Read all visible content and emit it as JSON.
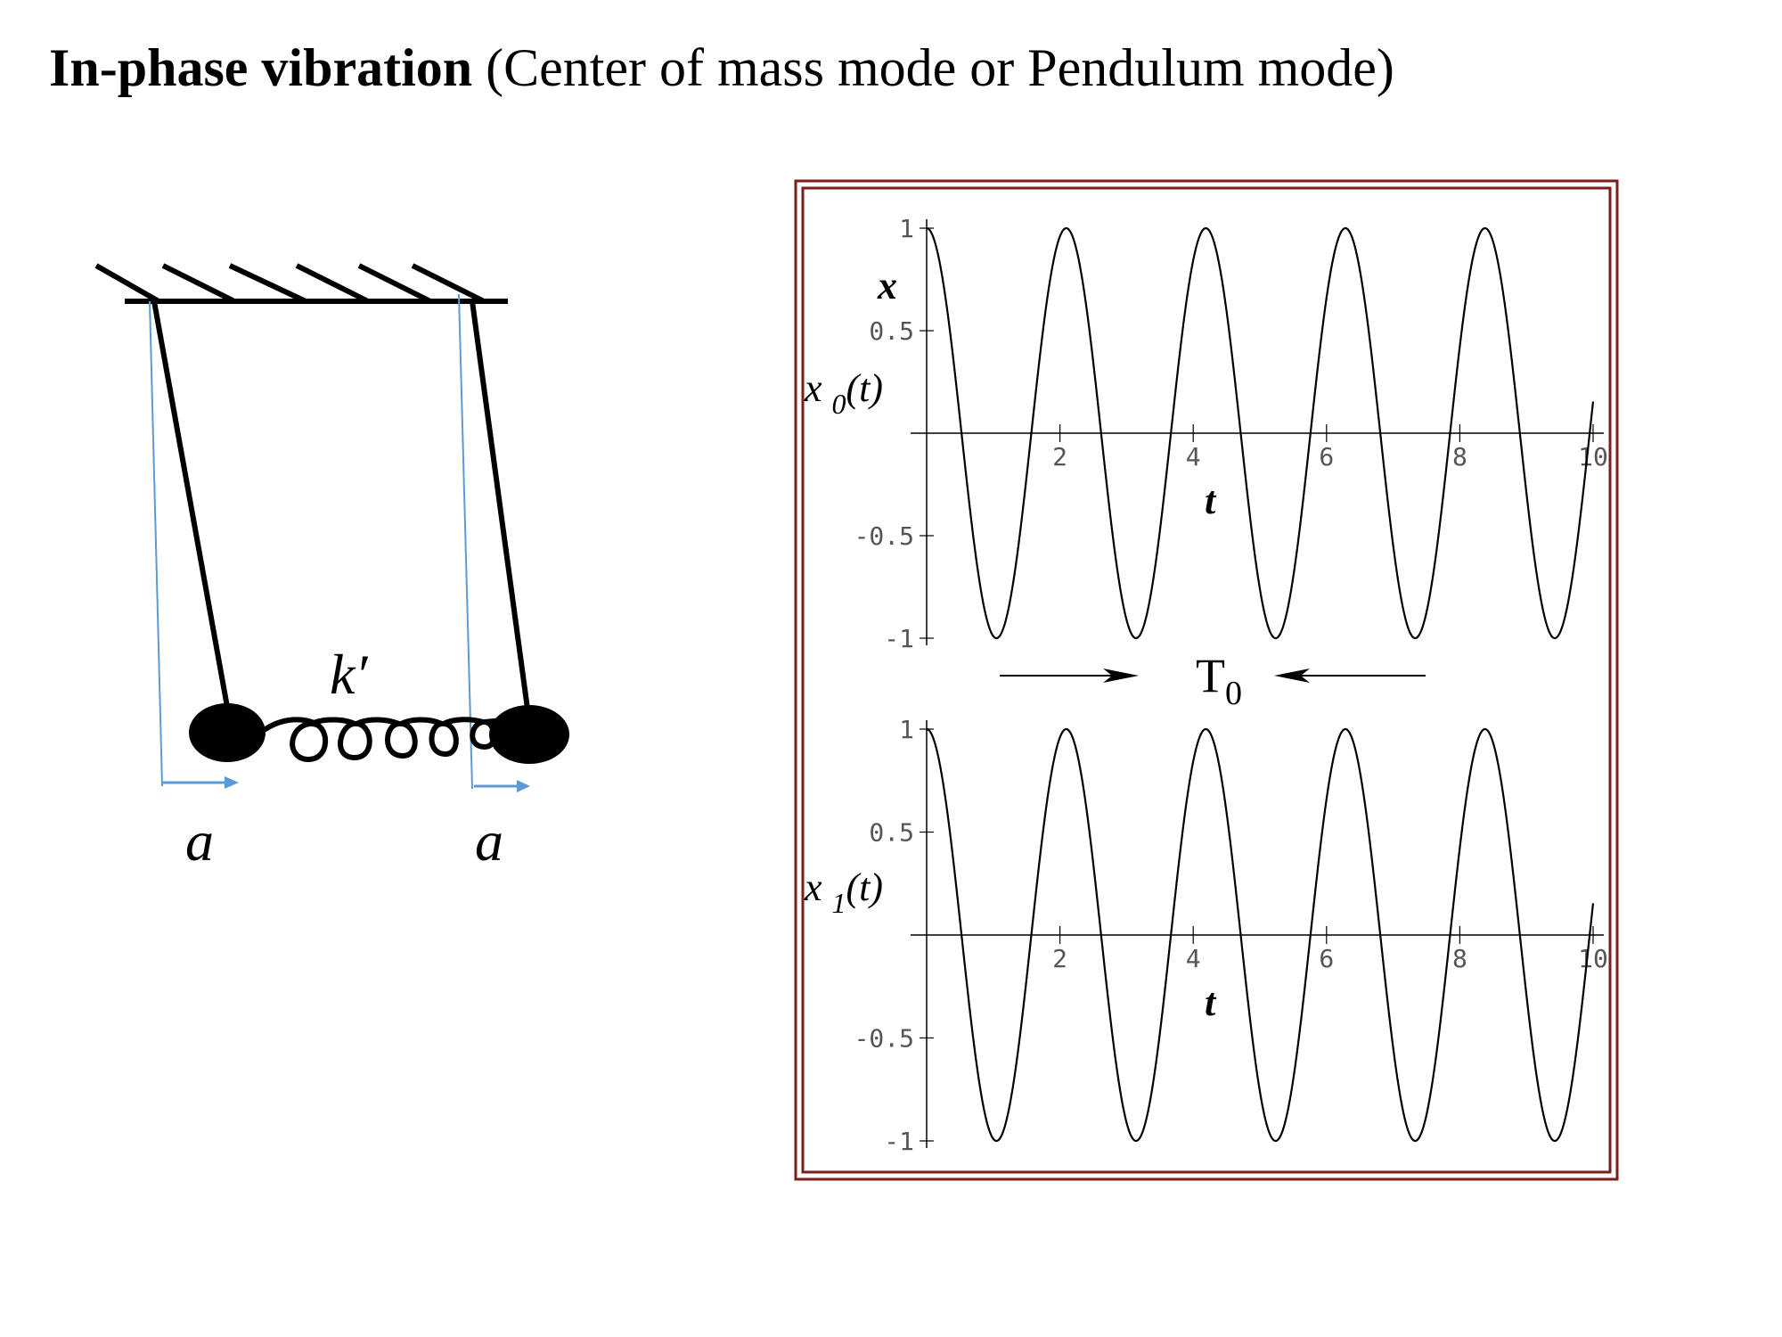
{
  "slide": {
    "title_bold": "In-phase vibration",
    "title_rest": " (Center of mass mode or Pendulum mode)"
  },
  "diagram": {
    "spring_label": "k′",
    "left_displacement_label": "a",
    "right_displacement_label": "a",
    "colors": {
      "ink": "#000000",
      "reference_lines": "#5b9bd5"
    }
  },
  "chart_frame_color": "#7f1d1d",
  "period_label": {
    "main": "T",
    "subscript": "0"
  },
  "chart_data": [
    {
      "type": "line",
      "function": "cos(3t)",
      "ylabel": "x",
      "curve_label": {
        "base": "x ",
        "subscript": "0",
        "suffix": "(t)"
      },
      "xlabel": "t",
      "xlim": [
        0,
        10
      ],
      "ylim": [
        -1,
        1
      ],
      "x_ticks": [
        2,
        4,
        6,
        8,
        10
      ],
      "y_ticks": [
        -1,
        -0.5,
        0.5,
        1
      ],
      "series": [
        {
          "x_range": [
            0,
            10
          ],
          "period": 2.0944,
          "amplitude": 1,
          "phase": 0
        }
      ]
    },
    {
      "type": "line",
      "function": "cos(3t)",
      "ylabel": "",
      "curve_label": {
        "base": "x ",
        "subscript": "1",
        "suffix": "(t)"
      },
      "xlabel": "t",
      "xlim": [
        0,
        10
      ],
      "ylim": [
        -1,
        1
      ],
      "x_ticks": [
        2,
        4,
        6,
        8,
        10
      ],
      "y_ticks": [
        -1,
        -0.5,
        0.5,
        1
      ],
      "series": [
        {
          "x_range": [
            0,
            10
          ],
          "period": 2.0944,
          "amplitude": 1,
          "phase": 0
        }
      ]
    }
  ]
}
